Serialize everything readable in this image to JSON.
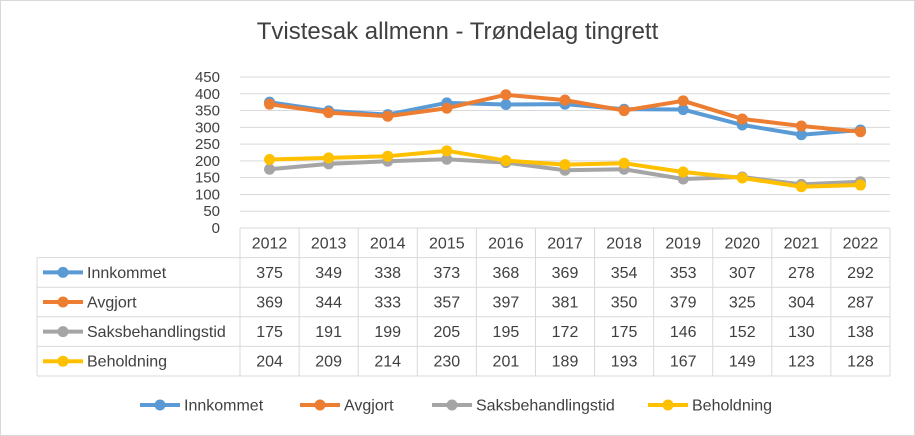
{
  "chart_data": {
    "type": "line",
    "title": "Tvistesak allmenn - Trøndelag tingrett",
    "xlabel": "",
    "ylabel": "",
    "ylim": [
      0,
      450
    ],
    "yticks": [
      "0",
      "50",
      "100",
      "150",
      "200",
      "250",
      "300",
      "350",
      "400",
      "450"
    ],
    "grid": true,
    "legend_position": "bottom",
    "data_table": true,
    "categories": [
      "2012",
      "2013",
      "2014",
      "2015",
      "2016",
      "2017",
      "2018",
      "2019",
      "2020",
      "2021",
      "2022"
    ],
    "series": [
      {
        "name": "Innkommet",
        "color": "#5b9bd5",
        "values": [
          375,
          349,
          338,
          373,
          368,
          369,
          354,
          353,
          307,
          278,
          292
        ]
      },
      {
        "name": "Avgjort",
        "color": "#ed7d31",
        "values": [
          369,
          344,
          333,
          357,
          397,
          381,
          350,
          379,
          325,
          304,
          287
        ]
      },
      {
        "name": "Saksbehandlingstid",
        "color": "#a5a5a5",
        "values": [
          175,
          191,
          199,
          205,
          195,
          172,
          175,
          146,
          152,
          130,
          138
        ]
      },
      {
        "name": "Beholdning",
        "color": "#ffc000",
        "values": [
          204,
          209,
          214,
          230,
          201,
          189,
          193,
          167,
          149,
          123,
          128
        ]
      }
    ]
  }
}
